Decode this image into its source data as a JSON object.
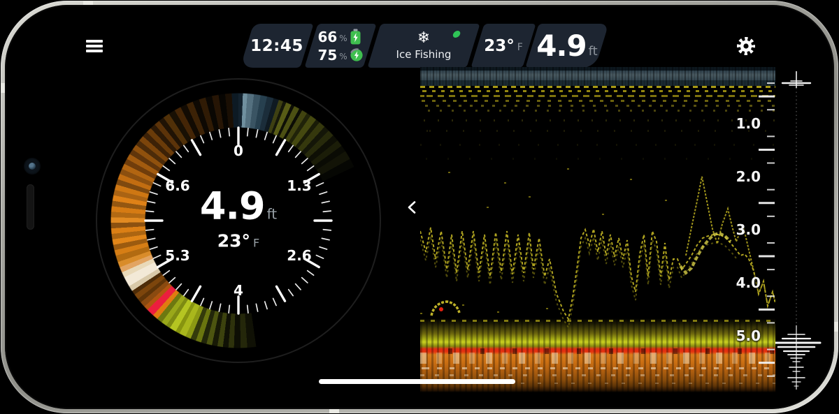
{
  "status_bar": {
    "time": "12:45",
    "batteries": [
      {
        "value": "66",
        "unit": "%",
        "icon": "battery-charging-icon"
      },
      {
        "value": "75",
        "unit": "%",
        "icon": "charger-charging-icon"
      }
    ],
    "mode": {
      "icon": "snowflake-icon",
      "glyph": "❄",
      "label": "Ice Fishing",
      "status_dot_color": "#2fc457"
    },
    "water_temp": {
      "value": "23°",
      "unit": "F"
    },
    "depth": {
      "value": "4.9",
      "unit": "ft"
    }
  },
  "flasher": {
    "scale_labels": [
      "0",
      "1.3",
      "2.6",
      "4",
      "5.3",
      "6.6"
    ],
    "depth": {
      "value": "4.9",
      "unit": "ft"
    },
    "temp": {
      "value": "23°",
      "unit": "F"
    }
  },
  "sonar": {
    "depth_ruler_labels": [
      "1.0",
      "2.0",
      "3.0",
      "4.0",
      "5.0"
    ],
    "colors": {
      "surface_band": "#48585f",
      "trace": "#b9ad22",
      "bottom_hard": "#e32a12",
      "bottom_sediment": "#cc7013",
      "weed_line": "#c9d021"
    }
  },
  "icons": {
    "menu": "hamburger-icon",
    "settings": "gear-icon",
    "nav": "left-right-chevrons-icon",
    "ascope": "vertical-beam-icon"
  },
  "accent_colors": {
    "segment_bg": "#1d2531",
    "battery_green": "#3fbf4f",
    "status_green": "#2fc457"
  }
}
